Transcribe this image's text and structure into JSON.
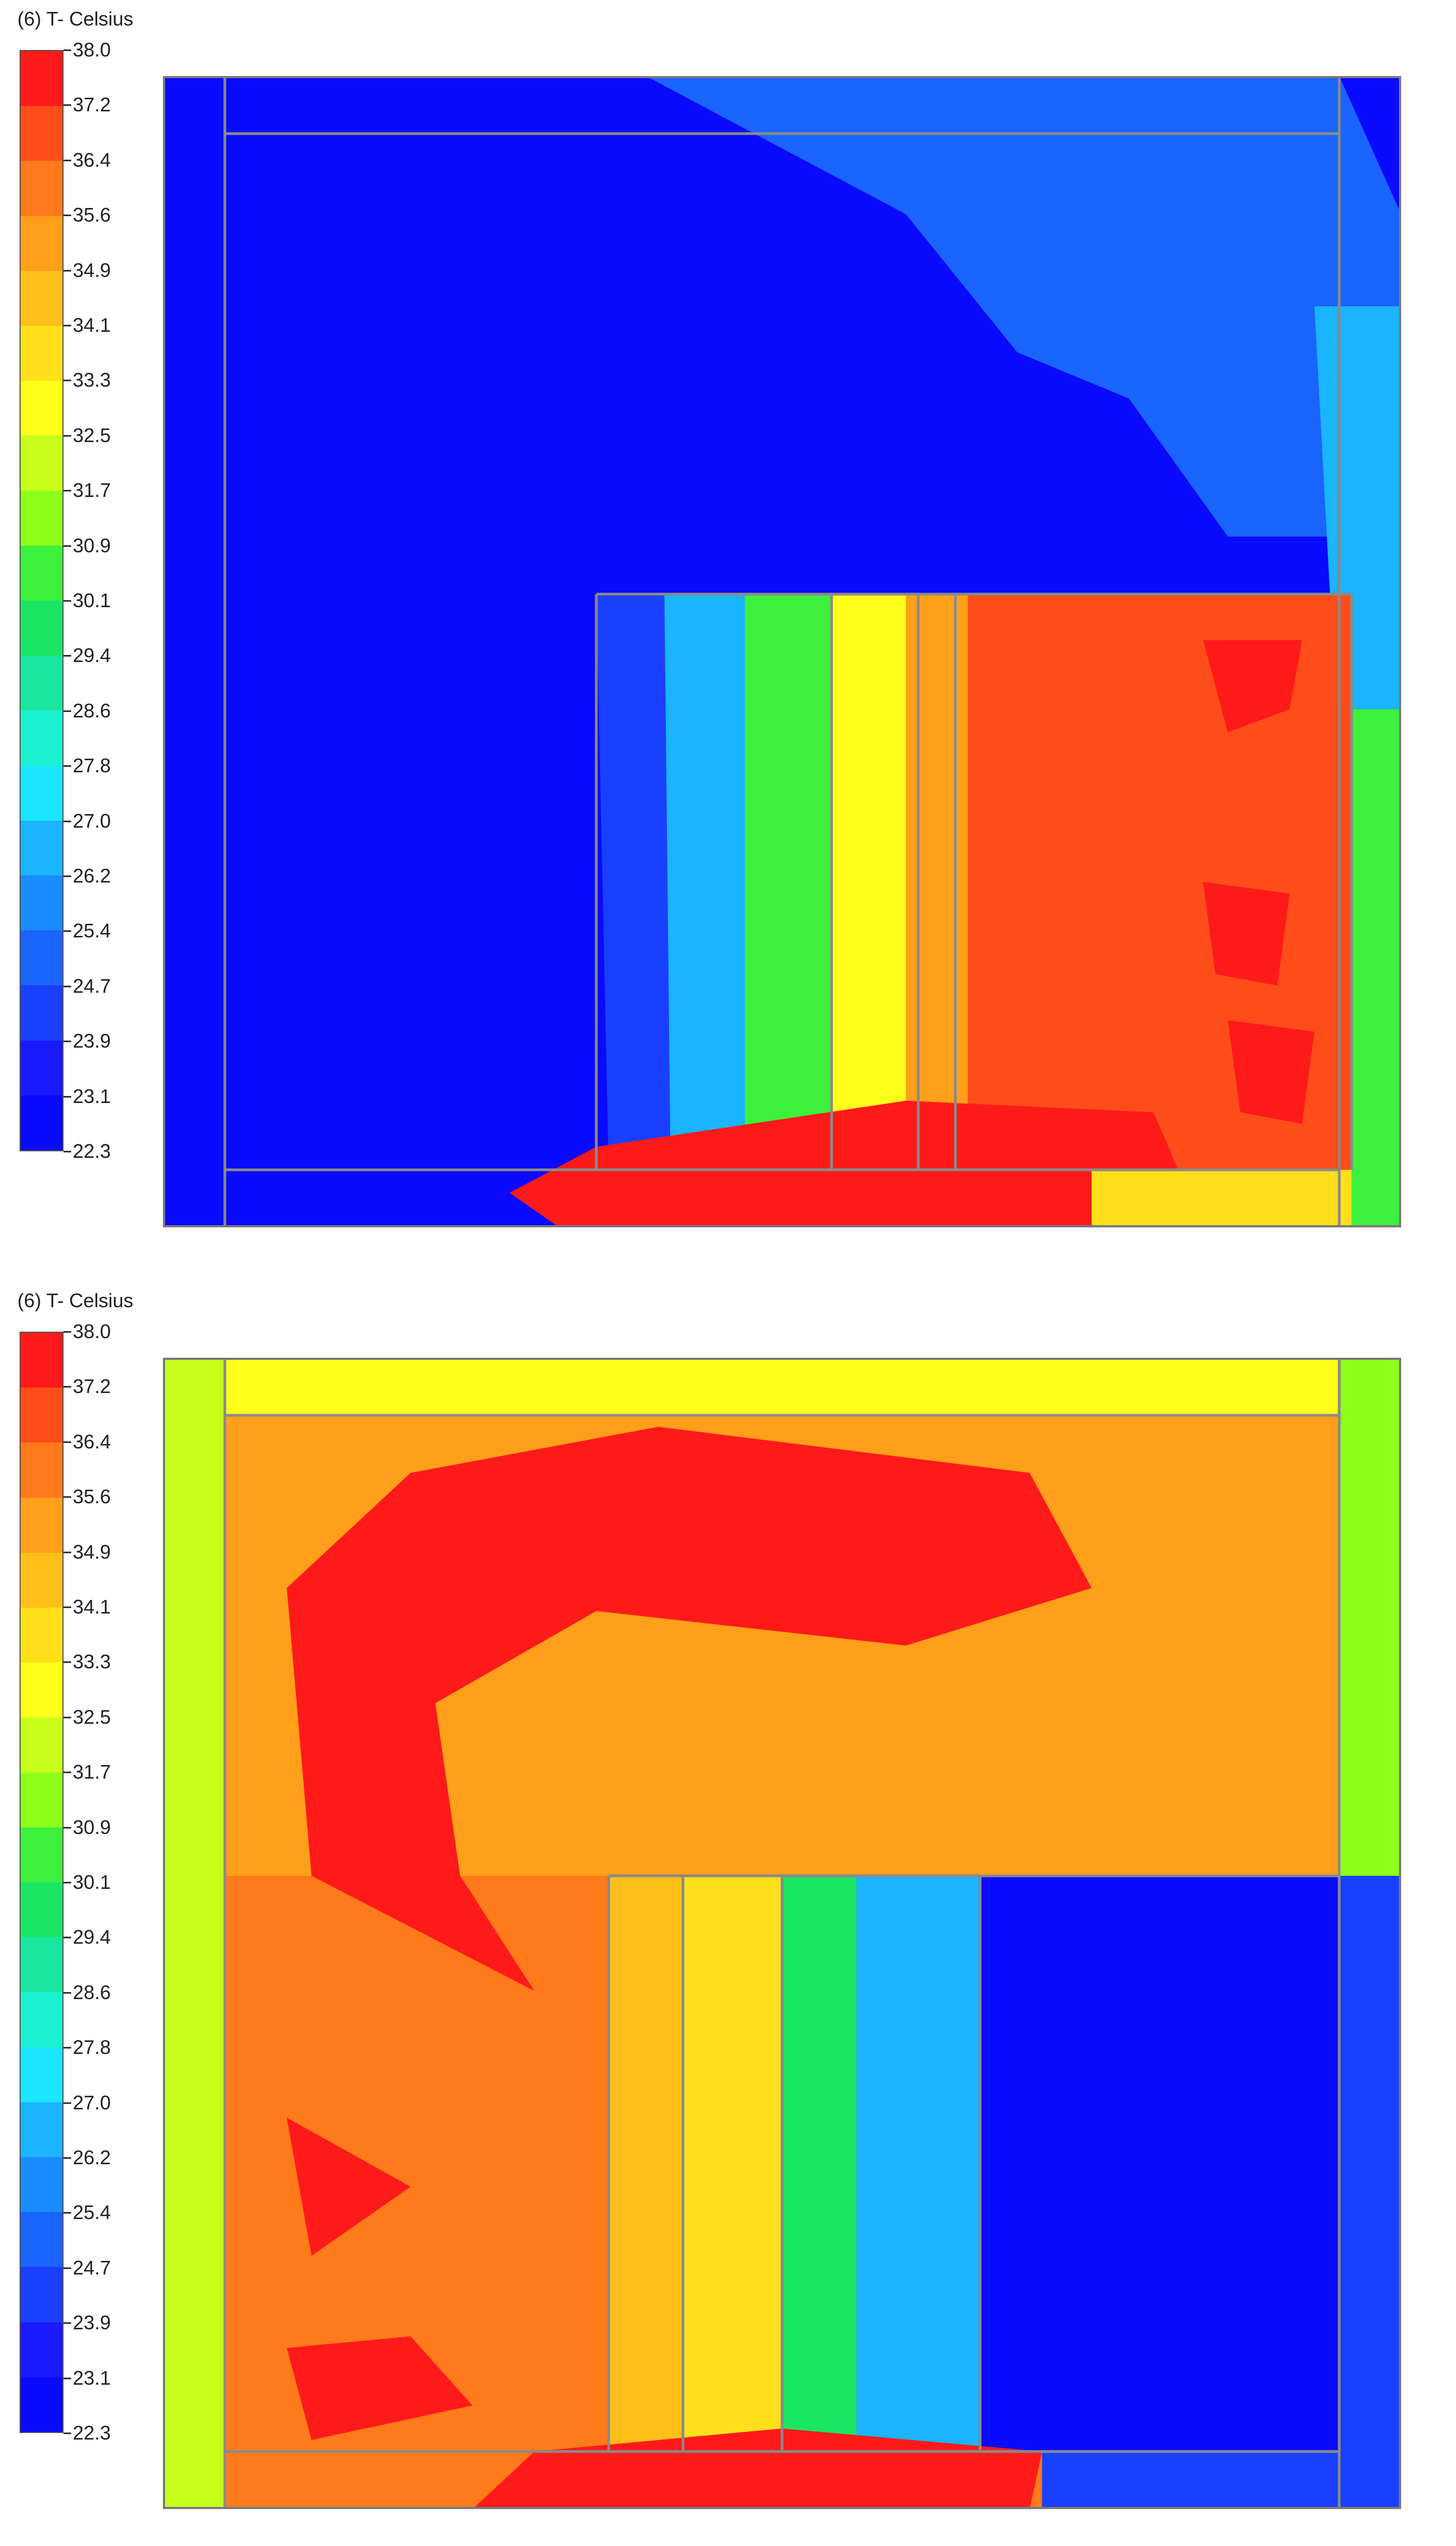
{
  "chart_data": [
    {
      "type": "heatmap",
      "title": "(6) T- Celsius",
      "colorbar": {
        "ticks": [
          "38.0",
          "37.2",
          "36.4",
          "35.6",
          "34.9",
          "34.1",
          "33.3",
          "32.5",
          "31.7",
          "30.9",
          "30.1",
          "29.4",
          "28.6",
          "27.8",
          "27.0",
          "26.2",
          "25.4",
          "24.7",
          "23.9",
          "23.1",
          "22.3"
        ],
        "colors": [
          "#ff1a1a",
          "#ff4d1a",
          "#ff7a1a",
          "#ff9f1a",
          "#ffbf1a",
          "#ffe01a",
          "#ffff1a",
          "#c8ff1a",
          "#8cff1a",
          "#3cf03c",
          "#1ae664",
          "#1ae6a0",
          "#1af0d2",
          "#1ae6ff",
          "#1ab4ff",
          "#1a8cff",
          "#1a64ff",
          "#1a40ff",
          "#1a1aff",
          "#0a0aff"
        ],
        "min": 22.3,
        "max": 38.0
      },
      "field": {
        "background_value": 22.8,
        "regions": [
          {
            "points": [
              [
                0.39,
                0.0
              ],
              [
                0.95,
                0.0
              ],
              [
                1.0,
                0.12
              ],
              [
                1.0,
                0.4
              ],
              [
                0.86,
                0.4
              ],
              [
                0.78,
                0.28
              ],
              [
                0.69,
                0.24
              ],
              [
                0.6,
                0.12
              ]
            ],
            "value": 24.7
          },
          {
            "points": [
              [
                0.77,
                0.05
              ],
              [
                0.95,
                0.05
              ],
              [
                0.95,
                0.12
              ],
              [
                0.82,
                0.15
              ]
            ],
            "value": 25.4
          },
          {
            "points": [
              [
                0.93,
                0.2
              ],
              [
                1.0,
                0.2
              ],
              [
                1.0,
                0.6
              ],
              [
                0.95,
                0.6
              ]
            ],
            "value": 27.0
          },
          {
            "points": [
              [
                0.96,
                0.55
              ],
              [
                1.0,
                0.55
              ],
              [
                1.0,
                1.0
              ],
              [
                0.96,
                1.0
              ]
            ],
            "value": 30.5
          },
          {
            "points": [
              [
                0.35,
                0.45
              ],
              [
                0.44,
                0.45
              ],
              [
                0.44,
                0.95
              ],
              [
                0.36,
                0.95
              ]
            ],
            "value": 24.5
          },
          {
            "points": [
              [
                0.405,
                0.45
              ],
              [
                0.48,
                0.45
              ],
              [
                0.48,
                0.95
              ],
              [
                0.41,
                0.95
              ]
            ],
            "value": 27.0
          },
          {
            "points": [
              [
                0.47,
                0.45
              ],
              [
                0.54,
                0.45
              ],
              [
                0.54,
                0.95
              ],
              [
                0.47,
                0.95
              ]
            ],
            "value": 30.9
          },
          {
            "points": [
              [
                0.54,
                0.45
              ],
              [
                0.61,
                0.45
              ],
              [
                0.61,
                0.95
              ],
              [
                0.54,
                0.95
              ]
            ],
            "value": 32.8
          },
          {
            "points": [
              [
                0.6,
                0.45
              ],
              [
                0.66,
                0.45
              ],
              [
                0.66,
                0.95
              ],
              [
                0.6,
                0.95
              ]
            ],
            "value": 35.0
          },
          {
            "points": [
              [
                0.65,
                0.45
              ],
              [
                0.96,
                0.45
              ],
              [
                0.96,
                0.95
              ],
              [
                0.65,
                0.95
              ]
            ],
            "value": 36.9
          },
          {
            "points": [
              [
                0.84,
                0.49
              ],
              [
                0.92,
                0.49
              ],
              [
                0.91,
                0.55
              ],
              [
                0.86,
                0.57
              ]
            ],
            "value": 38.0
          },
          {
            "points": [
              [
                0.84,
                0.7
              ],
              [
                0.91,
                0.71
              ],
              [
                0.9,
                0.79
              ],
              [
                0.85,
                0.78
              ]
            ],
            "value": 38.0
          },
          {
            "points": [
              [
                0.86,
                0.82
              ],
              [
                0.93,
                0.83
              ],
              [
                0.92,
                0.91
              ],
              [
                0.87,
                0.9
              ]
            ],
            "value": 38.0
          },
          {
            "points": [
              [
                0.28,
                0.97
              ],
              [
                0.35,
                0.93
              ],
              [
                0.6,
                0.89
              ],
              [
                0.8,
                0.9
              ],
              [
                0.82,
                0.95
              ],
              [
                0.75,
                1.0
              ],
              [
                0.32,
                1.0
              ]
            ],
            "value": 38.0
          },
          {
            "points": [
              [
                0.75,
                0.95
              ],
              [
                0.96,
                0.95
              ],
              [
                0.96,
                1.0
              ],
              [
                0.75,
                1.0
              ]
            ],
            "value": 33.5
          }
        ],
        "boundary_lines": [
          {
            "from": [
              0.05,
              0.0
            ],
            "to": [
              0.05,
              1.0
            ]
          },
          {
            "from": [
              0.95,
              0.0
            ],
            "to": [
              0.95,
              1.0
            ]
          },
          {
            "from": [
              0.05,
              0.05
            ],
            "to": [
              0.95,
              0.05
            ]
          },
          {
            "from": [
              0.05,
              0.95
            ],
            "to": [
              0.95,
              0.95
            ]
          },
          {
            "from": [
              0.35,
              0.45
            ],
            "to": [
              0.96,
              0.45
            ]
          },
          {
            "from": [
              0.35,
              0.45
            ],
            "to": [
              0.35,
              0.95
            ]
          },
          {
            "from": [
              0.64,
              0.45
            ],
            "to": [
              0.64,
              0.95
            ]
          },
          {
            "from": [
              0.96,
              0.45
            ],
            "to": [
              0.96,
              0.95
            ]
          },
          {
            "from": [
              0.54,
              0.45
            ],
            "to": [
              0.54,
              0.95
            ]
          },
          {
            "from": [
              0.61,
              0.45
            ],
            "to": [
              0.61,
              0.95
            ]
          }
        ]
      }
    },
    {
      "type": "heatmap",
      "title": "(6) T- Celsius",
      "colorbar": {
        "ticks": [
          "38.0",
          "37.2",
          "36.4",
          "35.6",
          "34.9",
          "34.1",
          "33.3",
          "32.5",
          "31.7",
          "30.9",
          "30.1",
          "29.4",
          "28.6",
          "27.8",
          "27.0",
          "26.2",
          "25.4",
          "24.7",
          "23.9",
          "23.1",
          "22.3"
        ],
        "colors": [
          "#ff1a1a",
          "#ff4d1a",
          "#ff7a1a",
          "#ff9f1a",
          "#ffbf1a",
          "#ffe01a",
          "#ffff1a",
          "#c8ff1a",
          "#8cff1a",
          "#3cf03c",
          "#1ae664",
          "#1ae6a0",
          "#1af0d2",
          "#1ae6ff",
          "#1ab4ff",
          "#1a8cff",
          "#1a64ff",
          "#1a40ff",
          "#1a1aff",
          "#0a0aff"
        ],
        "min": 22.3,
        "max": 38.0
      },
      "field": {
        "background_value": 36.4,
        "regions": [
          {
            "points": [
              [
                0.0,
                0.0
              ],
              [
                1.0,
                0.0
              ],
              [
                1.0,
                0.05
              ],
              [
                0.0,
                0.05
              ]
            ],
            "value": 33.0
          },
          {
            "points": [
              [
                0.0,
                0.0
              ],
              [
                0.05,
                0.0
              ],
              [
                0.05,
                1.0
              ],
              [
                0.0,
                1.0
              ]
            ],
            "value": 32.5
          },
          {
            "points": [
              [
                0.95,
                0.0
              ],
              [
                1.0,
                0.0
              ],
              [
                1.0,
                0.45
              ],
              [
                0.95,
                0.45
              ]
            ],
            "value": 31.0
          },
          {
            "points": [
              [
                0.05,
                0.05
              ],
              [
                0.95,
                0.05
              ],
              [
                0.95,
                0.45
              ],
              [
                0.05,
                0.45
              ]
            ],
            "value": 35.6
          },
          {
            "points": [
              [
                0.1,
                0.2
              ],
              [
                0.2,
                0.1
              ],
              [
                0.4,
                0.06
              ],
              [
                0.7,
                0.1
              ],
              [
                0.75,
                0.2
              ],
              [
                0.6,
                0.25
              ],
              [
                0.35,
                0.22
              ],
              [
                0.22,
                0.3
              ],
              [
                0.24,
                0.45
              ],
              [
                0.3,
                0.55
              ],
              [
                0.12,
                0.45
              ]
            ],
            "value": 38.0
          },
          {
            "points": [
              [
                0.3,
                0.3
              ],
              [
                0.45,
                0.27
              ],
              [
                0.7,
                0.33
              ],
              [
                0.9,
                0.38
              ],
              [
                0.65,
                0.42
              ],
              [
                0.35,
                0.4
              ]
            ],
            "value": 35.0
          },
          {
            "points": [
              [
                0.36,
                0.45
              ],
              [
                0.42,
                0.45
              ],
              [
                0.42,
                0.95
              ],
              [
                0.36,
                0.95
              ]
            ],
            "value": 34.5
          },
          {
            "points": [
              [
                0.42,
                0.45
              ],
              [
                0.5,
                0.45
              ],
              [
                0.5,
                0.95
              ],
              [
                0.42,
                0.95
              ]
            ],
            "value": 33.3
          },
          {
            "points": [
              [
                0.5,
                0.45
              ],
              [
                0.56,
                0.45
              ],
              [
                0.56,
                0.95
              ],
              [
                0.5,
                0.95
              ]
            ],
            "value": 30.0
          },
          {
            "points": [
              [
                0.56,
                0.45
              ],
              [
                0.66,
                0.45
              ],
              [
                0.66,
                0.95
              ],
              [
                0.56,
                0.95
              ]
            ],
            "value": 26.5
          },
          {
            "points": [
              [
                0.66,
                0.45
              ],
              [
                0.95,
                0.45
              ],
              [
                0.95,
                0.95
              ],
              [
                0.66,
                0.95
              ]
            ],
            "value": 22.6
          },
          {
            "points": [
              [
                0.95,
                0.45
              ],
              [
                1.0,
                0.45
              ],
              [
                1.0,
                1.0
              ],
              [
                0.95,
                1.0
              ]
            ],
            "value": 24.0
          },
          {
            "points": [
              [
                0.1,
                0.66
              ],
              [
                0.2,
                0.72
              ],
              [
                0.12,
                0.78
              ]
            ],
            "value": 38.0
          },
          {
            "points": [
              [
                0.1,
                0.86
              ],
              [
                0.2,
                0.85
              ],
              [
                0.25,
                0.91
              ],
              [
                0.12,
                0.94
              ]
            ],
            "value": 38.0
          },
          {
            "points": [
              [
                0.25,
                1.0
              ],
              [
                0.3,
                0.95
              ],
              [
                0.5,
                0.93
              ],
              [
                0.71,
                0.95
              ],
              [
                0.7,
                1.0
              ]
            ],
            "value": 38.0
          },
          {
            "points": [
              [
                0.71,
                0.95
              ],
              [
                0.95,
                0.95
              ],
              [
                0.95,
                1.0
              ],
              [
                0.71,
                1.0
              ]
            ],
            "value": 24.0
          }
        ],
        "boundary_lines": [
          {
            "from": [
              0.05,
              0.0
            ],
            "to": [
              0.05,
              1.0
            ]
          },
          {
            "from": [
              0.95,
              0.0
            ],
            "to": [
              0.95,
              1.0
            ]
          },
          {
            "from": [
              0.05,
              0.05
            ],
            "to": [
              0.95,
              0.05
            ]
          },
          {
            "from": [
              0.05,
              0.95
            ],
            "to": [
              0.95,
              0.95
            ]
          },
          {
            "from": [
              0.36,
              0.45
            ],
            "to": [
              0.95,
              0.45
            ]
          },
          {
            "from": [
              0.36,
              0.45
            ],
            "to": [
              0.36,
              0.95
            ]
          },
          {
            "from": [
              0.66,
              0.45
            ],
            "to": [
              0.66,
              0.95
            ]
          },
          {
            "from": [
              0.95,
              0.45
            ],
            "to": [
              0.95,
              0.95
            ]
          },
          {
            "from": [
              0.42,
              0.45
            ],
            "to": [
              0.42,
              0.95
            ]
          },
          {
            "from": [
              0.5,
              0.45
            ],
            "to": [
              0.5,
              0.95
            ]
          }
        ]
      }
    }
  ]
}
